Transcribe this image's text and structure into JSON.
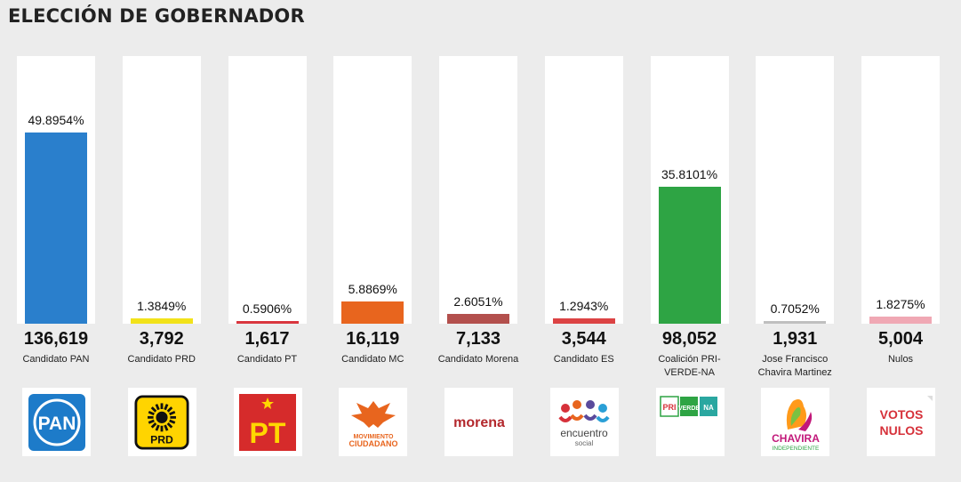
{
  "title": "ELECCIÓN DE GOBERNADOR",
  "chart_data": {
    "type": "bar",
    "title": "ELECCIÓN DE GOBERNADOR",
    "ylim": [
      0,
      70
    ],
    "categories": [
      "Candidato PAN",
      "Candidato PRD",
      "Candidato PT",
      "Candidato MC",
      "Candidato Morena",
      "Candidato ES",
      "Coalición PRI-VERDE-NA",
      "Jose Francisco Chavira Martinez",
      "Nulos"
    ],
    "values": [
      49.8954,
      1.3849,
      0.5906,
      5.8869,
      2.6051,
      1.2943,
      35.8101,
      0.7052,
      1.8275
    ],
    "percent_labels": [
      "49.8954%",
      "1.3849%",
      "0.5906%",
      "5.8869%",
      "2.6051%",
      "1.2943%",
      "35.8101%",
      "0.7052%",
      "1.8275%"
    ],
    "votes": [
      "136,619",
      "3,792",
      "1,617",
      "16,119",
      "7,133",
      "3,544",
      "98,052",
      "1,931",
      "5,004"
    ],
    "colors": [
      "#2a7fcc",
      "#f2e21a",
      "#d9363e",
      "#e8651e",
      "#b3504d",
      "#dc4344",
      "#2ea444",
      "#bfbfbf",
      "#f0a8b4"
    ]
  },
  "logos": [
    {
      "icon": "pan-logo",
      "text": "PAN",
      "color": "#1d7bc9"
    },
    {
      "icon": "prd-logo",
      "text": "PRD",
      "color": "#ffd400"
    },
    {
      "icon": "pt-logo",
      "text": "PT",
      "color": "#d62b2b"
    },
    {
      "icon": "mc-logo",
      "text": "MOVIMIENTO CIUDADANO",
      "color": "#e8651e"
    },
    {
      "icon": "morena-logo",
      "text": "morena",
      "color": "#b3282d"
    },
    {
      "icon": "es-logo",
      "text": "encuentro social",
      "color": "#5a4a9c"
    },
    {
      "icon": "pri-verde-na-logo",
      "text": "PRI VERDE",
      "color": "#2ea444"
    },
    {
      "icon": "chavira-logo",
      "text": "CHAVIRA INDEPENDIENTE",
      "color": "#c2187a"
    },
    {
      "icon": "votos-nulos-logo",
      "text": "VOTOS NULOS",
      "color": "#d6313a"
    }
  ]
}
